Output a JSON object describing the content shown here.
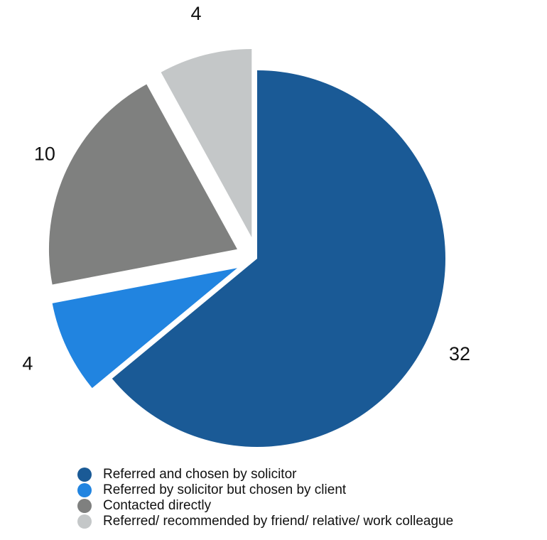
{
  "chart_data": {
    "type": "pie",
    "title": "",
    "series": [
      {
        "name": "Referred and chosen by solicitor",
        "value": 32,
        "label": "32",
        "color": "#1a5a96"
      },
      {
        "name": "Referred by solicitor but chosen by client",
        "value": 4,
        "label": "4",
        "color": "#2184e0"
      },
      {
        "name": "Contacted directly",
        "value": 10,
        "label": "10",
        "color": "#7f807f"
      },
      {
        "name": "Referred/ recommended by friend/ relative/ work colleague",
        "value": 4,
        "label": "4",
        "color": "#c4c7c8"
      }
    ],
    "start": "top, clockwise",
    "exploded_slices": [
      "Referred by solicitor but chosen by client",
      "Contacted directly",
      "Referred/ recommended by friend/ relative/ work colleague"
    ],
    "legend_position": "bottom"
  }
}
